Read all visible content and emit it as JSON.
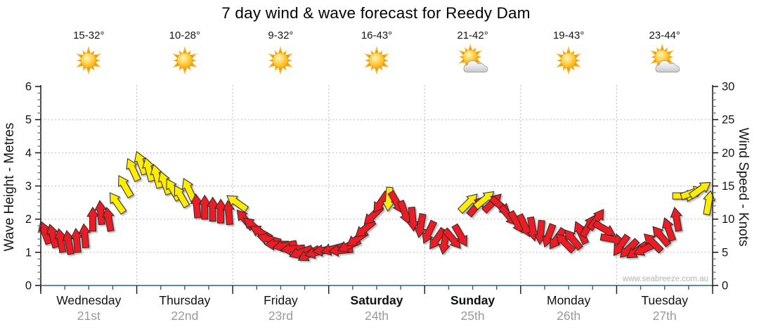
{
  "title": "7 day wind & wave forecast for Reedy Dam",
  "watermark": "www.seabreeze.com.au",
  "days": [
    {
      "name": "Wednesday",
      "date": "21st",
      "temp": "15-32°",
      "icon": "sun",
      "bold": false
    },
    {
      "name": "Thursday",
      "date": "22nd",
      "temp": "10-28°",
      "icon": "sun",
      "bold": false
    },
    {
      "name": "Friday",
      "date": "23rd",
      "temp": "9-32°",
      "icon": "sun",
      "bold": false
    },
    {
      "name": "Saturday",
      "date": "24th",
      "temp": "16-43°",
      "icon": "sun",
      "bold": true
    },
    {
      "name": "Sunday",
      "date": "25th",
      "temp": "21-42°",
      "icon": "sun-cloud",
      "bold": true
    },
    {
      "name": "Monday",
      "date": "26th",
      "temp": "19-43°",
      "icon": "sun",
      "bold": false
    },
    {
      "name": "Tuesday",
      "date": "27th",
      "temp": "23-44°",
      "icon": "sun-cloud",
      "bold": false
    }
  ],
  "chart_data": {
    "type": "wind-arrow-series",
    "title": "7 day wind & wave forecast for Reedy Dam",
    "left_axis": {
      "label": "Wave Height - Metres",
      "min": 0,
      "max": 6,
      "tick_step": 1,
      "minor_step": 0.2,
      "ticks": [
        0,
        1,
        2,
        3,
        4,
        5,
        6
      ]
    },
    "right_axis": {
      "label": "Wind Speed - Knots",
      "min": 0,
      "max": 30,
      "tick_step": 5,
      "minor_step": 1,
      "ticks": [
        0,
        5,
        10,
        15,
        20,
        25,
        30
      ]
    },
    "x_axis": {
      "arrows_per_day": 12,
      "minor_ticks_per_day": 3,
      "gridlines_at_day_boundaries": true
    },
    "grid": true,
    "colors": {
      "arrow_red": "#ed1c24",
      "arrow_yellow": "#ffec00",
      "arrow_outline": "#2b2b2b",
      "gridline": "#bbbbbb",
      "baseline_blue": "#2e5e8e",
      "axis_black": "#222222",
      "date_grey": "#999999",
      "watermark_grey": "#b3b3b3"
    },
    "series_note": "Each arrow = wind forecast point; vertical position = wind speed (knots, right axis) / wave height (metres, left axis); arrow rotation = wind direction (0 = up); c: r=red, y=yellow",
    "arrows": [
      [
        8,
        -20,
        "r"
      ],
      [
        7.5,
        -15,
        "r"
      ],
      [
        6.8,
        -10,
        "r"
      ],
      [
        6.5,
        -10,
        "r"
      ],
      [
        6.8,
        -5,
        "r"
      ],
      [
        7.5,
        -5,
        "r"
      ],
      [
        10,
        0,
        "r"
      ],
      [
        11,
        -5,
        "r"
      ],
      [
        10,
        -10,
        "r"
      ],
      [
        12.5,
        -35,
        "y"
      ],
      [
        15,
        -30,
        "y"
      ],
      [
        17.5,
        -25,
        "y"
      ],
      [
        18.5,
        -20,
        "y"
      ],
      [
        17.5,
        -15,
        "y"
      ],
      [
        16.5,
        -15,
        "y"
      ],
      [
        15.5,
        -20,
        "y"
      ],
      [
        14.5,
        -30,
        "y"
      ],
      [
        13.5,
        -30,
        "y"
      ],
      [
        14.5,
        -25,
        "y"
      ],
      [
        12,
        -5,
        "r"
      ],
      [
        11.8,
        0,
        "r"
      ],
      [
        11.5,
        0,
        "r"
      ],
      [
        11.2,
        0,
        "r"
      ],
      [
        11,
        -5,
        "r"
      ],
      [
        12.5,
        -55,
        "y"
      ],
      [
        10,
        -40,
        "r"
      ],
      [
        9,
        -50,
        "r"
      ],
      [
        8,
        -60,
        "r"
      ],
      [
        7,
        -75,
        "r"
      ],
      [
        6.2,
        -90,
        "r"
      ],
      [
        6,
        -100,
        "r"
      ],
      [
        5.5,
        -95,
        "r"
      ],
      [
        5,
        -110,
        "r"
      ],
      [
        4.7,
        -120,
        "r"
      ],
      [
        5,
        -105,
        "r"
      ],
      [
        5.3,
        -95,
        "r"
      ],
      [
        5.5,
        -105,
        "r"
      ],
      [
        5.3,
        -95,
        "r"
      ],
      [
        6,
        245,
        "r"
      ],
      [
        7,
        235,
        "r"
      ],
      [
        8.5,
        230,
        "r"
      ],
      [
        10.5,
        225,
        "r"
      ],
      [
        12.5,
        215,
        "r"
      ],
      [
        13,
        185,
        "y"
      ],
      [
        12.5,
        150,
        "r"
      ],
      [
        11,
        160,
        "r"
      ],
      [
        10,
        175,
        "r"
      ],
      [
        9,
        190,
        "r"
      ],
      [
        8,
        205,
        "r"
      ],
      [
        7,
        215,
        "r"
      ],
      [
        6.5,
        190,
        "r"
      ],
      [
        7,
        140,
        "r"
      ],
      [
        7.5,
        150,
        "r"
      ],
      [
        12.5,
        45,
        "y"
      ],
      [
        12,
        40,
        "r"
      ],
      [
        13,
        50,
        "y"
      ],
      [
        12.5,
        45,
        "r"
      ],
      [
        12,
        130,
        "r"
      ],
      [
        10.5,
        140,
        "r"
      ],
      [
        9.5,
        150,
        "r"
      ],
      [
        9,
        155,
        "r"
      ],
      [
        8.5,
        170,
        "r"
      ],
      [
        8,
        185,
        "r"
      ],
      [
        7.5,
        200,
        "r"
      ],
      [
        7,
        215,
        "r"
      ],
      [
        6.5,
        -45,
        "r"
      ],
      [
        7,
        -40,
        "r"
      ],
      [
        8,
        -25,
        "r"
      ],
      [
        9,
        30,
        "r"
      ],
      [
        10,
        35,
        "r"
      ],
      [
        8.5,
        120,
        "r"
      ],
      [
        7,
        100,
        "r"
      ],
      [
        6,
        215,
        "r"
      ],
      [
        5.5,
        225,
        "r"
      ],
      [
        5.2,
        235,
        "r"
      ],
      [
        5.5,
        245,
        "r"
      ],
      [
        6.5,
        -45,
        "r"
      ],
      [
        7.5,
        -40,
        "r"
      ],
      [
        8.5,
        -20,
        "r"
      ],
      [
        10,
        -10,
        "r"
      ],
      [
        13.5,
        90,
        "y"
      ],
      [
        14,
        70,
        "y"
      ],
      [
        14.5,
        55,
        "y"
      ],
      [
        12.5,
        10,
        "y"
      ]
    ]
  }
}
